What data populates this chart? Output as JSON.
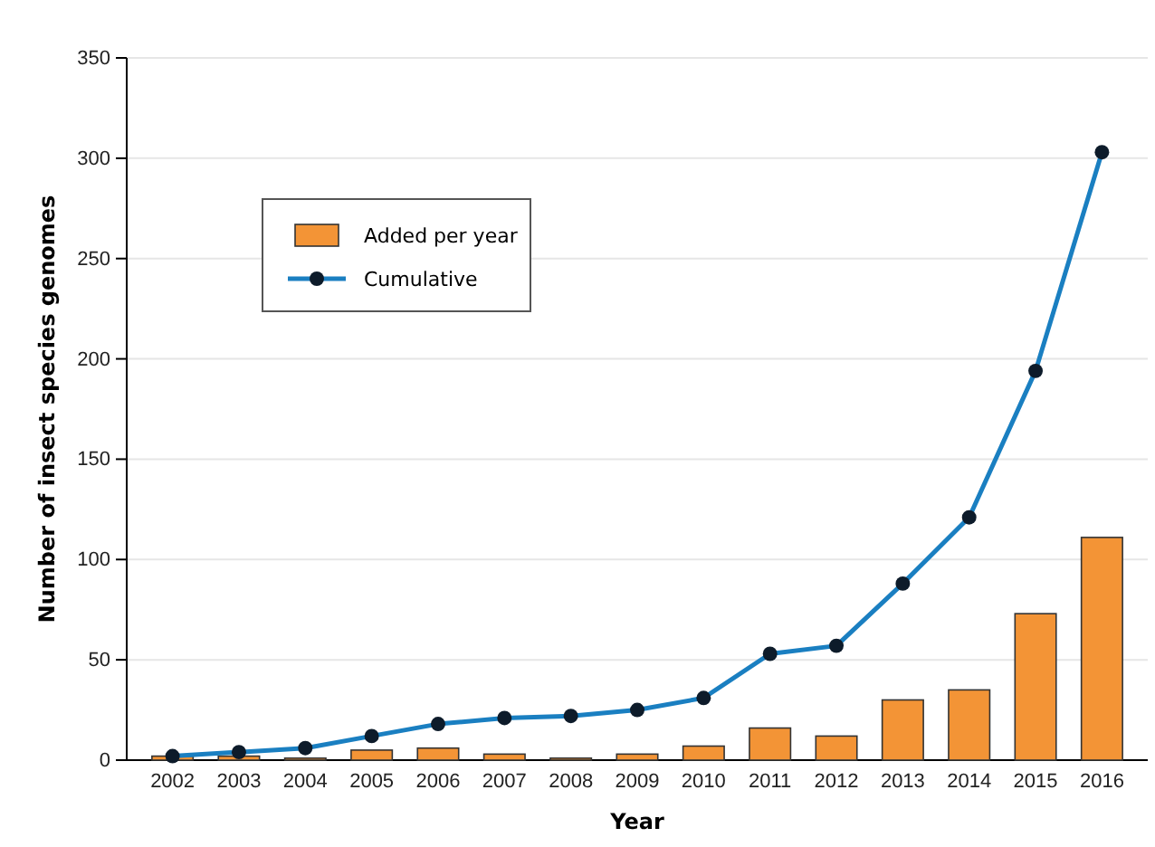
{
  "chart_data": {
    "type": "bar",
    "xlabel": "Year",
    "ylabel": "Number of insect species genomes",
    "categories": [
      "2002",
      "2003",
      "2004",
      "2005",
      "2006",
      "2007",
      "2008",
      "2009",
      "2010",
      "2011",
      "2012",
      "2013",
      "2014",
      "2015",
      "2016"
    ],
    "series": [
      {
        "name": "Added per year",
        "color": "#f39436",
        "values": [
          2,
          2,
          1,
          5,
          6,
          3,
          1,
          3,
          7,
          16,
          12,
          30,
          35,
          73,
          111
        ]
      },
      {
        "name": "Cumulative",
        "type": "line",
        "color": "#1a7fc1",
        "values": [
          2,
          4,
          6,
          12,
          18,
          21,
          22,
          25,
          31,
          53,
          57,
          88,
          121,
          194,
          303
        ]
      }
    ],
    "ylim": [
      0,
      350
    ],
    "yticks": [
      0,
      50,
      100,
      150,
      200,
      250,
      300,
      350
    ],
    "grid": "y",
    "legend": "top left",
    "marker": "circle"
  }
}
